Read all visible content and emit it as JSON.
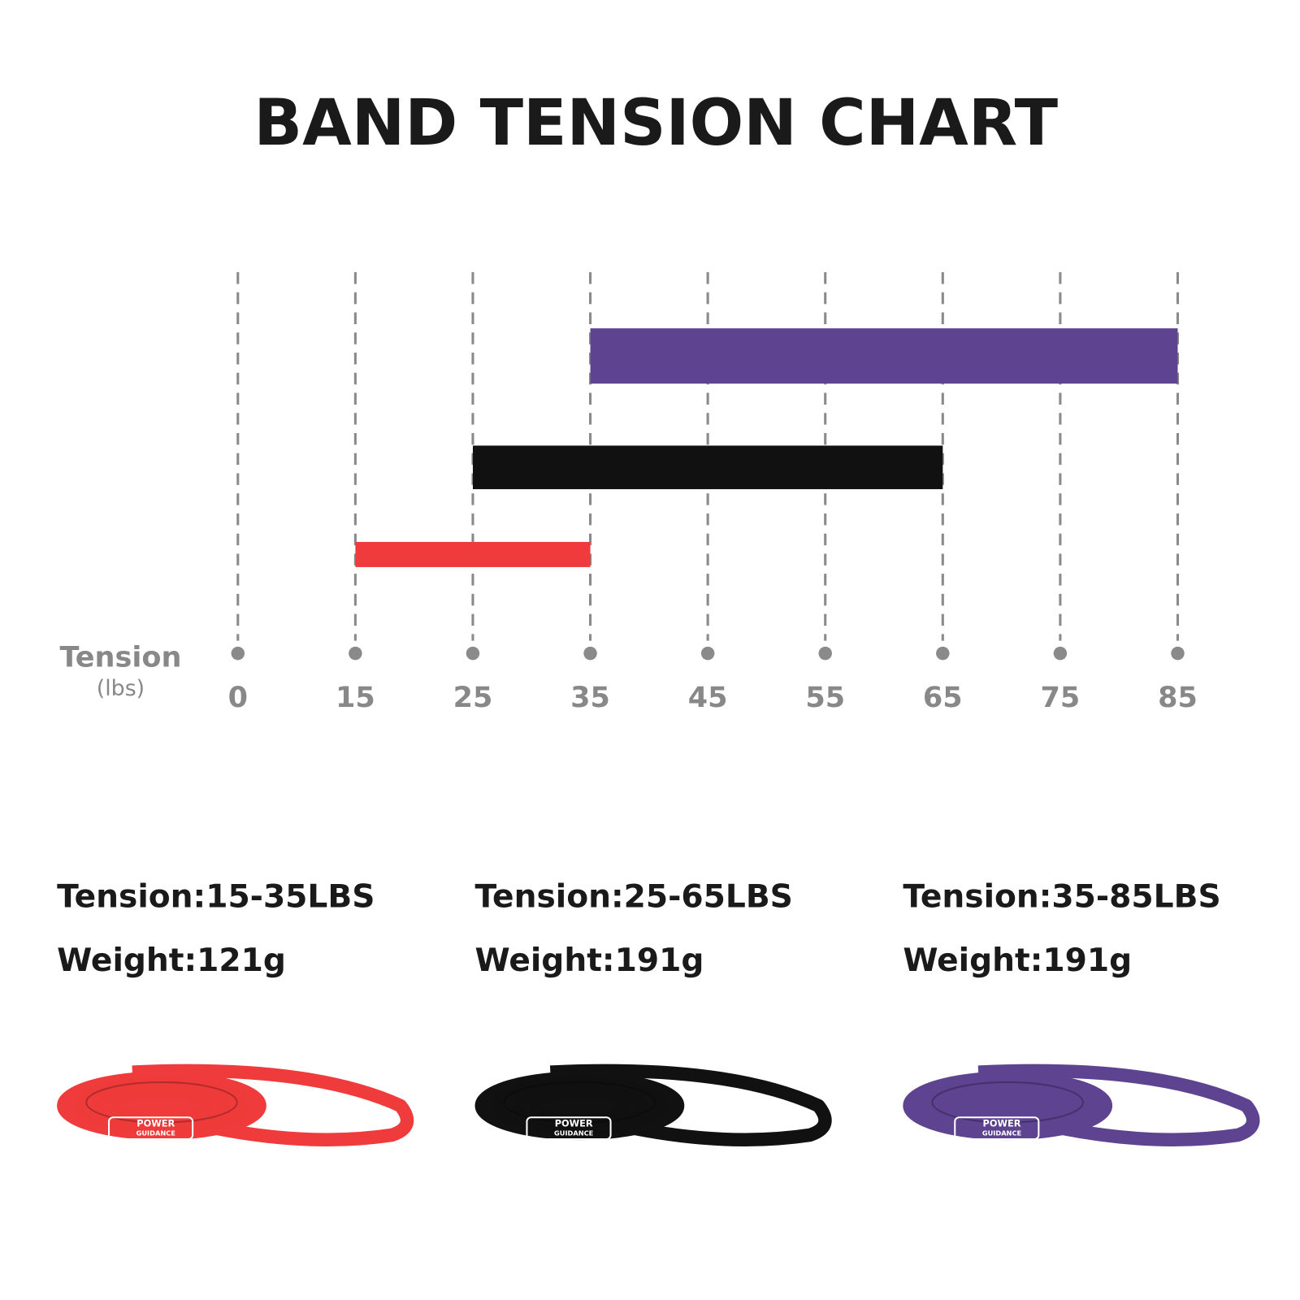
{
  "chart_data": {
    "type": "range-bar",
    "title": "BAND TENSION CHART",
    "xlabel": "Tension",
    "xunit": "(lbs)",
    "xlim": [
      0,
      85
    ],
    "xticks": [
      0,
      15,
      25,
      35,
      45,
      55,
      65,
      75,
      85
    ],
    "grid": true,
    "series": [
      {
        "color": "#5d4390",
        "values": [
          35,
          85
        ]
      },
      {
        "color": "#111111",
        "values": [
          25,
          65
        ]
      },
      {
        "color": "#ef3b3b",
        "values": [
          15,
          35
        ]
      }
    ]
  },
  "products": [
    {
      "tension": "Tension:15-35LBS",
      "weight": "Weight:121g"
    },
    {
      "tension": "Tension:25-65LBS",
      "weight": "Weight:191g"
    },
    {
      "tension": "Tension:35-85LBS",
      "weight": "Weight:191g"
    }
  ],
  "brand": [
    "POWER",
    "GUIDANCE"
  ]
}
